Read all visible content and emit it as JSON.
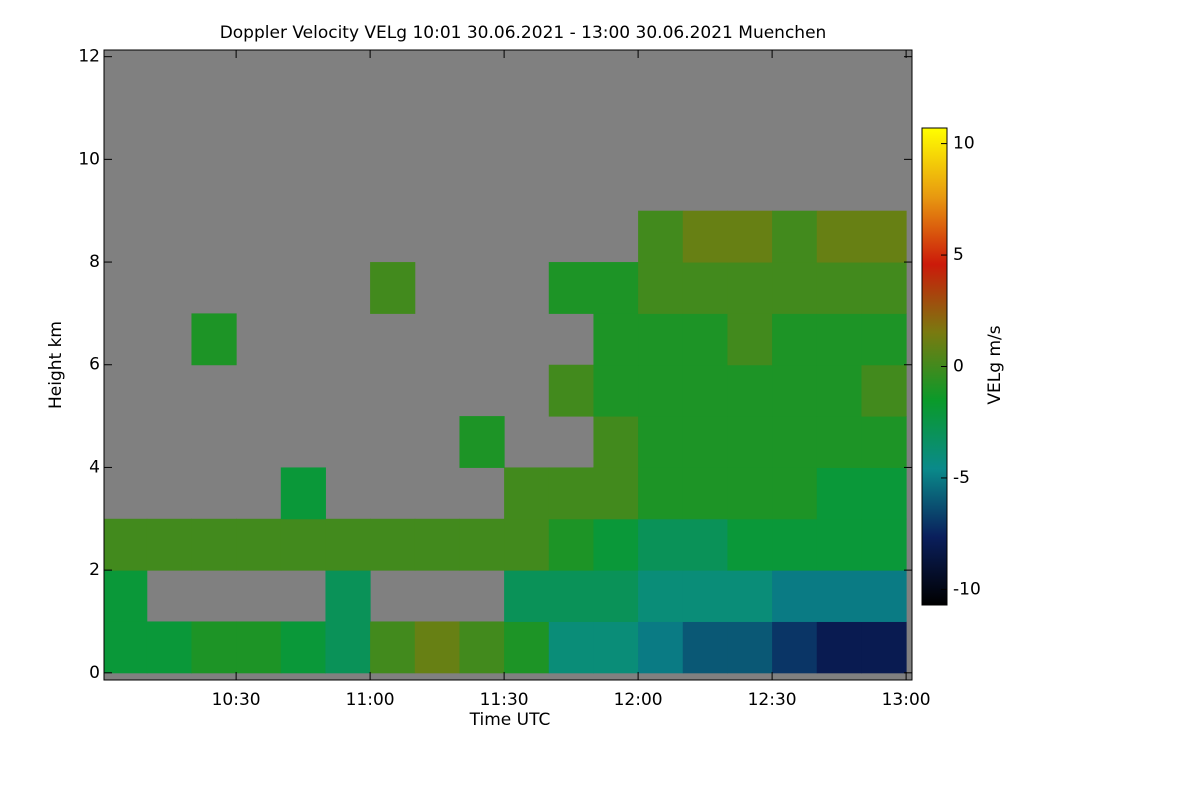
{
  "chart_data": {
    "type": "heatmap",
    "title": "Doppler Velocity VELg   10:01 30.06.2021 - 13:00 30.06.2021 Muenchen",
    "xlabel": "Time UTC",
    "ylabel": "Height km",
    "colorbar_label": "VELg m/s",
    "x": [
      10.0833,
      10.25,
      10.4167,
      10.5833,
      10.75,
      10.9167,
      11.0833,
      11.25,
      11.4167,
      11.5833,
      11.75,
      11.9167,
      12.0833,
      12.25,
      12.4167,
      12.5833,
      12.75,
      12.9167
    ],
    "y": [
      0.5,
      1.5,
      2.5,
      3.5,
      4.5,
      5.5,
      6.5,
      7.5,
      8.5,
      9.5,
      10.5,
      11.5
    ],
    "z": [
      [
        -2,
        -2,
        -1,
        -1,
        -2,
        -3,
        0,
        1,
        0,
        -1,
        -4,
        -4,
        -5,
        -6,
        -6,
        -7,
        -8,
        -8
      ],
      [
        -2,
        null,
        null,
        null,
        null,
        -3,
        null,
        null,
        null,
        -3,
        -3,
        -3,
        -4,
        -4,
        -4,
        -5,
        -5,
        -5
      ],
      [
        0,
        0,
        0,
        0,
        0,
        0,
        0,
        0,
        0,
        0,
        -1,
        -2,
        -3,
        -3,
        -2,
        -2,
        -2,
        -2
      ],
      [
        null,
        null,
        null,
        null,
        -2,
        null,
        null,
        null,
        null,
        0,
        0,
        0,
        -1,
        -1,
        -1,
        -1,
        -2,
        -2
      ],
      [
        null,
        null,
        null,
        null,
        null,
        null,
        null,
        null,
        -1,
        null,
        null,
        0,
        -1,
        -1,
        -1,
        -1,
        -1,
        -1
      ],
      [
        null,
        null,
        null,
        null,
        null,
        null,
        null,
        null,
        null,
        null,
        0,
        -1,
        -1,
        -1,
        -1,
        -1,
        -1,
        0
      ],
      [
        null,
        null,
        -1,
        null,
        null,
        null,
        null,
        null,
        null,
        null,
        null,
        -1,
        -1,
        -1,
        0,
        -1,
        -1,
        -1
      ],
      [
        null,
        null,
        null,
        null,
        null,
        null,
        0,
        null,
        null,
        null,
        -1,
        -1,
        0,
        0,
        0,
        0,
        0,
        0
      ],
      [
        null,
        null,
        null,
        null,
        null,
        null,
        null,
        null,
        null,
        null,
        null,
        null,
        0,
        1,
        1,
        0,
        1,
        1
      ],
      [
        null,
        null,
        null,
        null,
        null,
        null,
        null,
        null,
        null,
        null,
        null,
        null,
        null,
        null,
        null,
        null,
        null,
        null
      ],
      [
        null,
        null,
        null,
        null,
        null,
        null,
        null,
        null,
        null,
        null,
        null,
        null,
        null,
        null,
        null,
        null,
        null,
        null
      ],
      [
        null,
        null,
        null,
        null,
        null,
        null,
        null,
        null,
        null,
        null,
        null,
        null,
        null,
        null,
        null,
        null,
        null,
        null
      ]
    ],
    "xlim": [
      10.007,
      13.022
    ],
    "ylim": [
      -0.14,
      12.13
    ],
    "xticks": [
      {
        "value": 10.5,
        "label": "10:30"
      },
      {
        "value": 11,
        "label": "11:00"
      },
      {
        "value": 11.5,
        "label": "11:30"
      },
      {
        "value": 12,
        "label": "12:00"
      },
      {
        "value": 12.5,
        "label": "12:30"
      },
      {
        "value": 13,
        "label": "13:00"
      }
    ],
    "yticks": [
      0,
      2,
      4,
      6,
      8,
      10,
      12
    ],
    "clim": [
      -10.7,
      10.7
    ],
    "cticks": [
      -10,
      -5,
      0,
      5,
      10
    ],
    "colormap": [
      "#000000",
      "#0a1f5c",
      "#0a8a8a",
      "#0a9a2a",
      "#7a7a10",
      "#cc1a0a",
      "#e89a10",
      "#ffff00"
    ],
    "background": "#808080"
  }
}
